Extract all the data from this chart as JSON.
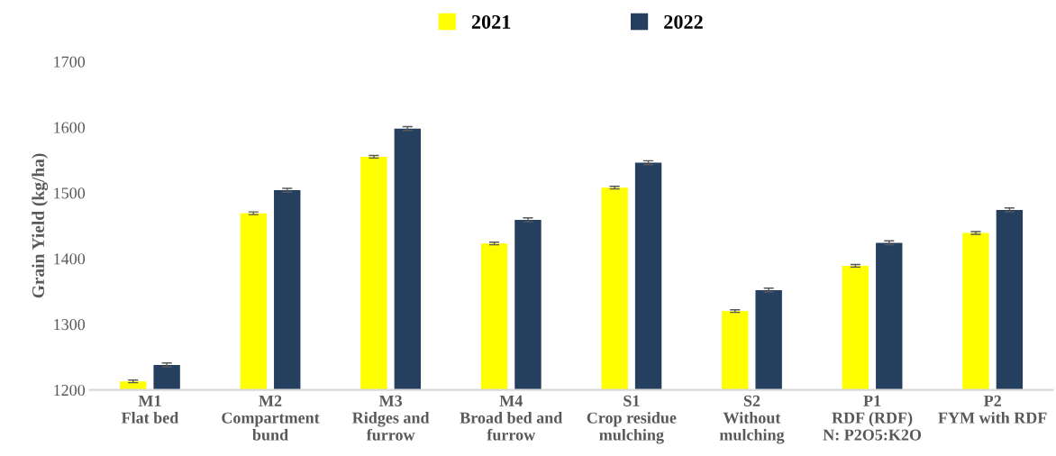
{
  "chart_data": {
    "type": "bar",
    "ylabel": "Grain Yield (kg/ha)",
    "categories": [
      "M1\nFlat bed",
      "M2\nCompartment\nbund",
      "M3\nRidges and\nfurrow",
      "M4\nBroad bed and\nfurrow",
      "S1\nCrop residue\nmulching",
      "S2\nWithout\nmulching",
      "P1\nRDF (RDF)\nN: P2O5:K2O",
      "P2\nFYM with RDF"
    ],
    "series": [
      {
        "name": "2021",
        "color": "#ffff00",
        "values": [
          1213,
          1469,
          1555,
          1423,
          1508,
          1320,
          1389,
          1439
        ],
        "errors": [
          2,
          2,
          2,
          2,
          2,
          2,
          2,
          2
        ]
      },
      {
        "name": "2022",
        "color": "#253f5f",
        "values": [
          1238,
          1504,
          1598,
          1459,
          1546,
          1352,
          1424,
          1474
        ],
        "errors": [
          3,
          3,
          3,
          3,
          3,
          3,
          3,
          3
        ]
      }
    ],
    "ylim": [
      1200,
      1700
    ],
    "yticks": [
      1200,
      1300,
      1400,
      1500,
      1600,
      1700
    ],
    "grid": false,
    "legend": "top"
  }
}
